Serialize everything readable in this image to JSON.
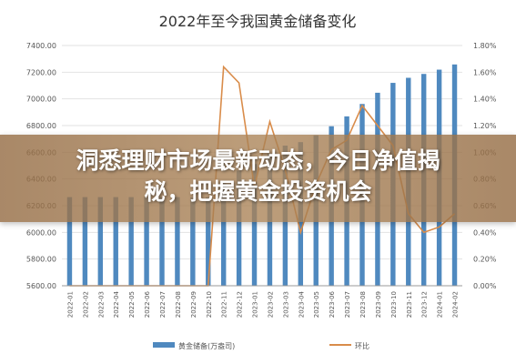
{
  "banner": {
    "line1": "洞悉理财市场最新动态，今日净值揭",
    "line2": "秘，把握黄金投资机会"
  },
  "chart_data": {
    "type": "bar",
    "title": "2022年至今我国黄金储备变化",
    "categories": [
      "2022-01",
      "2022-02",
      "2022-03",
      "2022-04",
      "2022-05",
      "2022-06",
      "2022-07",
      "2022-08",
      "2022-09",
      "2022-10",
      "2022-11",
      "2022-12",
      "2023-01",
      "2023-02",
      "2023-03",
      "2023-04",
      "2023-05",
      "2023-06",
      "2023-07",
      "2023-08",
      "2023-09",
      "2023-10",
      "2023-11",
      "2023-12",
      "2024-01",
      "2024-02"
    ],
    "series": [
      {
        "name": "黄金储备(万盎司)",
        "type": "bar",
        "axis": "left",
        "color": "#4f89bf",
        "values": [
          6264,
          6264,
          6264,
          6264,
          6264,
          6264,
          6264,
          6264,
          6264,
          6264,
          6367,
          6464,
          6512,
          6592,
          6650,
          6676,
          6727,
          6795,
          6869,
          6962,
          7046,
          7120,
          7158,
          7187,
          7219,
          7258
        ]
      },
      {
        "name": "环比",
        "type": "line",
        "axis": "right",
        "color": "#d98c4a",
        "values": [
          0,
          0,
          0,
          0,
          0,
          0,
          0,
          0,
          0,
          0,
          1.64,
          1.52,
          0.74,
          1.23,
          0.87,
          0.4,
          0.76,
          1.02,
          1.09,
          1.35,
          1.2,
          1.05,
          0.54,
          0.4,
          0.44,
          0.54
        ]
      }
    ],
    "yleft": {
      "min": 5600,
      "max": 7400,
      "ticks": [
        "5600.00",
        "5800.00",
        "6000.00",
        "6200.00",
        "6400.00",
        "6600.00",
        "6800.00",
        "7000.00",
        "7200.00",
        "7400.00"
      ]
    },
    "yright": {
      "min": 0,
      "max": 1.8,
      "ticks": [
        "0.00%",
        "0.20%",
        "0.40%",
        "0.60%",
        "0.80%",
        "1.00%",
        "1.20%",
        "1.40%",
        "1.60%",
        "1.80%"
      ]
    },
    "grid": true,
    "legend": "bottom"
  }
}
